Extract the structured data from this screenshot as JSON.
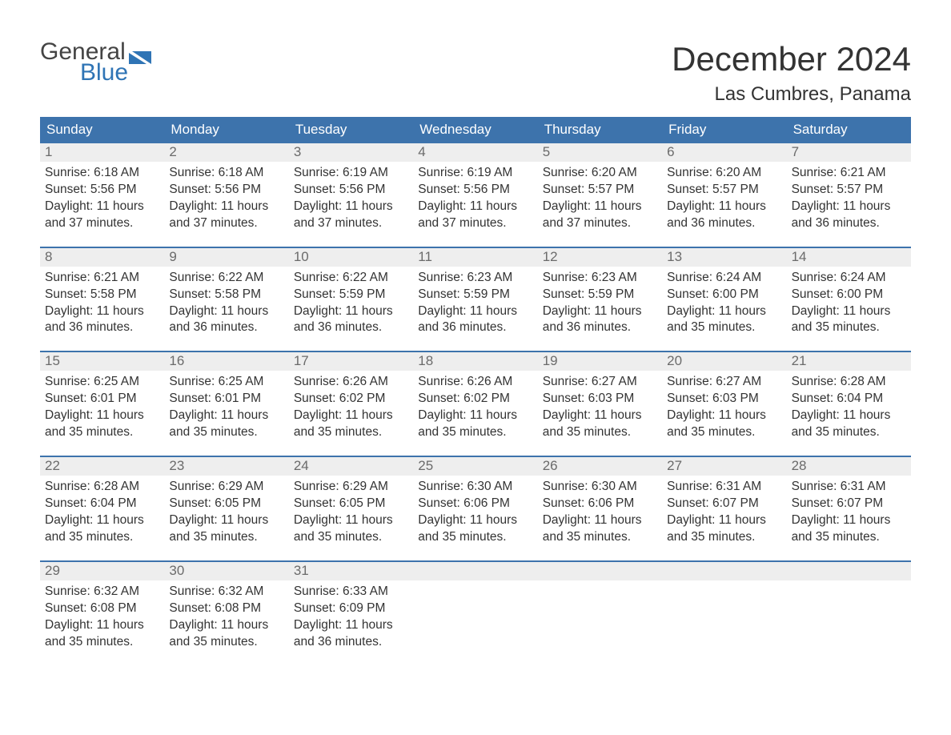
{
  "colors": {
    "brand_blue": "#2f74b5",
    "header_blue": "#3d73ac",
    "header_text": "#ffffff",
    "cell_head_bg": "#eeeeee",
    "cell_head_text": "#6b6b6b",
    "body_text": "#333333",
    "logo_gray": "#444444",
    "background": "#ffffff"
  },
  "logo": {
    "word1": "General",
    "word2": "Blue"
  },
  "title": "December 2024",
  "location": "Las Cumbres, Panama",
  "daynames": [
    "Sunday",
    "Monday",
    "Tuesday",
    "Wednesday",
    "Thursday",
    "Friday",
    "Saturday"
  ],
  "weeks": [
    [
      {
        "n": "1",
        "sunrise": "Sunrise: 6:18 AM",
        "sunset": "Sunset: 5:56 PM",
        "d1": "Daylight: 11 hours",
        "d2": "and 37 minutes."
      },
      {
        "n": "2",
        "sunrise": "Sunrise: 6:18 AM",
        "sunset": "Sunset: 5:56 PM",
        "d1": "Daylight: 11 hours",
        "d2": "and 37 minutes."
      },
      {
        "n": "3",
        "sunrise": "Sunrise: 6:19 AM",
        "sunset": "Sunset: 5:56 PM",
        "d1": "Daylight: 11 hours",
        "d2": "and 37 minutes."
      },
      {
        "n": "4",
        "sunrise": "Sunrise: 6:19 AM",
        "sunset": "Sunset: 5:56 PM",
        "d1": "Daylight: 11 hours",
        "d2": "and 37 minutes."
      },
      {
        "n": "5",
        "sunrise": "Sunrise: 6:20 AM",
        "sunset": "Sunset: 5:57 PM",
        "d1": "Daylight: 11 hours",
        "d2": "and 37 minutes."
      },
      {
        "n": "6",
        "sunrise": "Sunrise: 6:20 AM",
        "sunset": "Sunset: 5:57 PM",
        "d1": "Daylight: 11 hours",
        "d2": "and 36 minutes."
      },
      {
        "n": "7",
        "sunrise": "Sunrise: 6:21 AM",
        "sunset": "Sunset: 5:57 PM",
        "d1": "Daylight: 11 hours",
        "d2": "and 36 minutes."
      }
    ],
    [
      {
        "n": "8",
        "sunrise": "Sunrise: 6:21 AM",
        "sunset": "Sunset: 5:58 PM",
        "d1": "Daylight: 11 hours",
        "d2": "and 36 minutes."
      },
      {
        "n": "9",
        "sunrise": "Sunrise: 6:22 AM",
        "sunset": "Sunset: 5:58 PM",
        "d1": "Daylight: 11 hours",
        "d2": "and 36 minutes."
      },
      {
        "n": "10",
        "sunrise": "Sunrise: 6:22 AM",
        "sunset": "Sunset: 5:59 PM",
        "d1": "Daylight: 11 hours",
        "d2": "and 36 minutes."
      },
      {
        "n": "11",
        "sunrise": "Sunrise: 6:23 AM",
        "sunset": "Sunset: 5:59 PM",
        "d1": "Daylight: 11 hours",
        "d2": "and 36 minutes."
      },
      {
        "n": "12",
        "sunrise": "Sunrise: 6:23 AM",
        "sunset": "Sunset: 5:59 PM",
        "d1": "Daylight: 11 hours",
        "d2": "and 36 minutes."
      },
      {
        "n": "13",
        "sunrise": "Sunrise: 6:24 AM",
        "sunset": "Sunset: 6:00 PM",
        "d1": "Daylight: 11 hours",
        "d2": "and 35 minutes."
      },
      {
        "n": "14",
        "sunrise": "Sunrise: 6:24 AM",
        "sunset": "Sunset: 6:00 PM",
        "d1": "Daylight: 11 hours",
        "d2": "and 35 minutes."
      }
    ],
    [
      {
        "n": "15",
        "sunrise": "Sunrise: 6:25 AM",
        "sunset": "Sunset: 6:01 PM",
        "d1": "Daylight: 11 hours",
        "d2": "and 35 minutes."
      },
      {
        "n": "16",
        "sunrise": "Sunrise: 6:25 AM",
        "sunset": "Sunset: 6:01 PM",
        "d1": "Daylight: 11 hours",
        "d2": "and 35 minutes."
      },
      {
        "n": "17",
        "sunrise": "Sunrise: 6:26 AM",
        "sunset": "Sunset: 6:02 PM",
        "d1": "Daylight: 11 hours",
        "d2": "and 35 minutes."
      },
      {
        "n": "18",
        "sunrise": "Sunrise: 6:26 AM",
        "sunset": "Sunset: 6:02 PM",
        "d1": "Daylight: 11 hours",
        "d2": "and 35 minutes."
      },
      {
        "n": "19",
        "sunrise": "Sunrise: 6:27 AM",
        "sunset": "Sunset: 6:03 PM",
        "d1": "Daylight: 11 hours",
        "d2": "and 35 minutes."
      },
      {
        "n": "20",
        "sunrise": "Sunrise: 6:27 AM",
        "sunset": "Sunset: 6:03 PM",
        "d1": "Daylight: 11 hours",
        "d2": "and 35 minutes."
      },
      {
        "n": "21",
        "sunrise": "Sunrise: 6:28 AM",
        "sunset": "Sunset: 6:04 PM",
        "d1": "Daylight: 11 hours",
        "d2": "and 35 minutes."
      }
    ],
    [
      {
        "n": "22",
        "sunrise": "Sunrise: 6:28 AM",
        "sunset": "Sunset: 6:04 PM",
        "d1": "Daylight: 11 hours",
        "d2": "and 35 minutes."
      },
      {
        "n": "23",
        "sunrise": "Sunrise: 6:29 AM",
        "sunset": "Sunset: 6:05 PM",
        "d1": "Daylight: 11 hours",
        "d2": "and 35 minutes."
      },
      {
        "n": "24",
        "sunrise": "Sunrise: 6:29 AM",
        "sunset": "Sunset: 6:05 PM",
        "d1": "Daylight: 11 hours",
        "d2": "and 35 minutes."
      },
      {
        "n": "25",
        "sunrise": "Sunrise: 6:30 AM",
        "sunset": "Sunset: 6:06 PM",
        "d1": "Daylight: 11 hours",
        "d2": "and 35 minutes."
      },
      {
        "n": "26",
        "sunrise": "Sunrise: 6:30 AM",
        "sunset": "Sunset: 6:06 PM",
        "d1": "Daylight: 11 hours",
        "d2": "and 35 minutes."
      },
      {
        "n": "27",
        "sunrise": "Sunrise: 6:31 AM",
        "sunset": "Sunset: 6:07 PM",
        "d1": "Daylight: 11 hours",
        "d2": "and 35 minutes."
      },
      {
        "n": "28",
        "sunrise": "Sunrise: 6:31 AM",
        "sunset": "Sunset: 6:07 PM",
        "d1": "Daylight: 11 hours",
        "d2": "and 35 minutes."
      }
    ],
    [
      {
        "n": "29",
        "sunrise": "Sunrise: 6:32 AM",
        "sunset": "Sunset: 6:08 PM",
        "d1": "Daylight: 11 hours",
        "d2": "and 35 minutes."
      },
      {
        "n": "30",
        "sunrise": "Sunrise: 6:32 AM",
        "sunset": "Sunset: 6:08 PM",
        "d1": "Daylight: 11 hours",
        "d2": "and 35 minutes."
      },
      {
        "n": "31",
        "sunrise": "Sunrise: 6:33 AM",
        "sunset": "Sunset: 6:09 PM",
        "d1": "Daylight: 11 hours",
        "d2": "and 36 minutes."
      },
      null,
      null,
      null,
      null
    ]
  ]
}
